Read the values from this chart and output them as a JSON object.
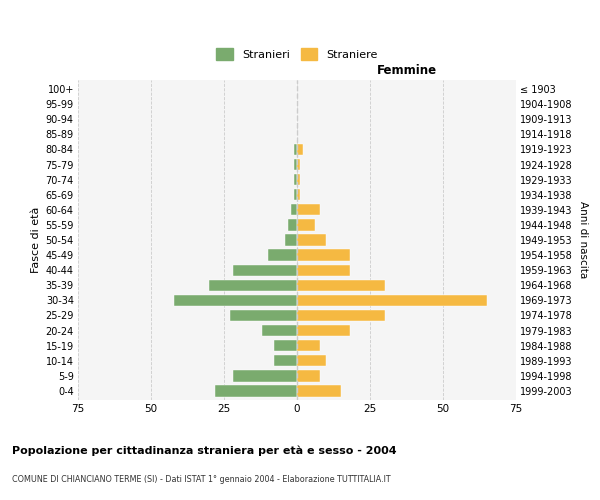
{
  "age_groups": [
    "0-4",
    "5-9",
    "10-14",
    "15-19",
    "20-24",
    "25-29",
    "30-34",
    "35-39",
    "40-44",
    "45-49",
    "50-54",
    "55-59",
    "60-64",
    "65-69",
    "70-74",
    "75-79",
    "80-84",
    "85-89",
    "90-94",
    "95-99",
    "100+"
  ],
  "birth_years": [
    "1999-2003",
    "1994-1998",
    "1989-1993",
    "1984-1988",
    "1979-1983",
    "1974-1978",
    "1969-1973",
    "1964-1968",
    "1959-1963",
    "1954-1958",
    "1949-1953",
    "1944-1948",
    "1939-1943",
    "1934-1938",
    "1929-1933",
    "1924-1928",
    "1919-1923",
    "1914-1918",
    "1909-1913",
    "1904-1908",
    "≤ 1903"
  ],
  "males": [
    28,
    22,
    8,
    8,
    12,
    23,
    42,
    30,
    22,
    10,
    4,
    3,
    2,
    1,
    1,
    1,
    1,
    0,
    0,
    0,
    0
  ],
  "females": [
    15,
    8,
    10,
    8,
    18,
    30,
    65,
    30,
    18,
    18,
    10,
    6,
    8,
    1,
    1,
    1,
    2,
    0,
    0,
    0,
    0
  ],
  "male_color": "#7aab6e",
  "female_color": "#f5b942",
  "xlim": 75,
  "xlabel_right": "Femmine",
  "ylabel_left": "Fasce di età",
  "ylabel_right": "Anni di nascita",
  "title": "Popolazione per cittadinanza straniera per età e sesso - 2004",
  "subtitle": "COMUNE DI CHIANCIANO TERME (SI) - Dati ISTAT 1° gennaio 2004 - Elaborazione TUTTITALIA.IT",
  "legend_male": "Stranieri",
  "legend_female": "Straniere",
  "bg_color": "#f5f5f5",
  "grid_color": "#cccccc",
  "bar_height": 0.75
}
